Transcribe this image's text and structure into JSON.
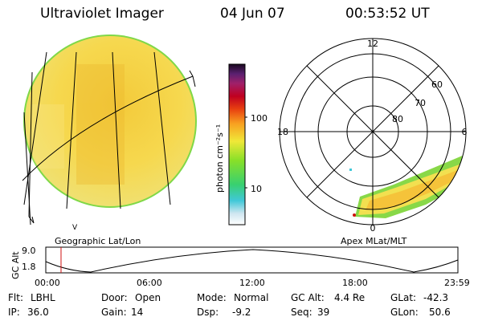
{
  "header": {
    "instrument": "Ultraviolet Imager",
    "date": "04 Jun 07",
    "time": "00:53:52 UT"
  },
  "geo_panel": {
    "label": "Geographic Lat/Lon",
    "corner_tick": "V"
  },
  "colorbar": {
    "unit_label": "photon cm⁻²s⁻¹",
    "ticks": [
      "100",
      "10"
    ]
  },
  "polar_panel": {
    "label": "Apex MLat/MLT",
    "mlt_labels": {
      "top": "12",
      "left": "18",
      "right": "6",
      "bottom": "0"
    },
    "lat_labels": [
      "60",
      "70",
      "80"
    ]
  },
  "altitude_plot": {
    "axis_label": "GC Alt",
    "y_ticks": [
      "9.0",
      "1.8"
    ],
    "time_ticks": [
      "00:00",
      "06:00",
      "12:00",
      "18:00",
      "23:59"
    ],
    "current_time_fraction": 0.037
  },
  "info": {
    "row1": [
      {
        "key": "Flt:",
        "value": "LBHL"
      },
      {
        "key": "Door:",
        "value": "Open"
      },
      {
        "key": "Mode:",
        "value": "Normal"
      },
      {
        "key": "GC Alt:",
        "value": "4.4 Re"
      },
      {
        "key": "GLat:",
        "value": "-42.3"
      }
    ],
    "row2": [
      {
        "key": "IP:",
        "value": "36.0"
      },
      {
        "key": "Gain:",
        "value": "14"
      },
      {
        "key": "Dsp:",
        "value": "-9.2"
      },
      {
        "key": "Seq:",
        "value": "39"
      },
      {
        "key": "GLon:",
        "value": "50.6"
      }
    ]
  },
  "colors": {
    "disk_fill": "#f5d23c",
    "disk_edge": "#7fd848",
    "marker": "#d01010"
  }
}
